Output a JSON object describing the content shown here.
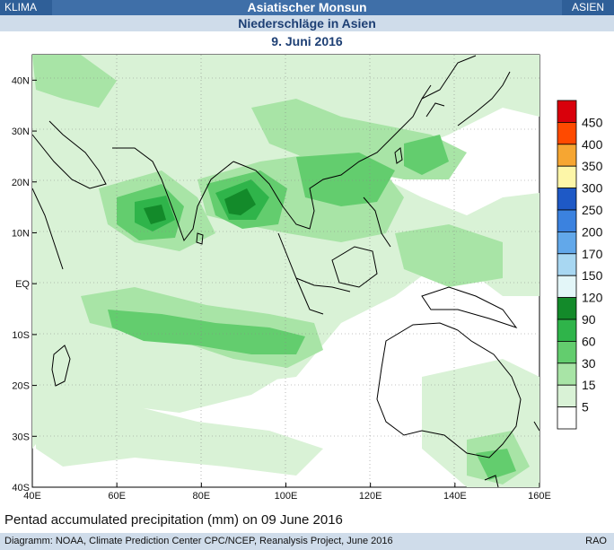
{
  "header": {
    "left_tag": "KLIMA",
    "title": "Asiatischer Monsun",
    "right_tag": "ASIEN",
    "subtitle": "Niederschläge in Asien",
    "date": "9. Juni 2016"
  },
  "map": {
    "caption": "Pentad accumulated precipitation (mm) on 09 June 2016",
    "x_ticks": [
      "40E",
      "60E",
      "80E",
      "100E",
      "120E",
      "140E",
      "160E"
    ],
    "y_ticks": [
      "40N",
      "30N",
      "20N",
      "10N",
      "EQ",
      "10S",
      "20S",
      "30S",
      "40S"
    ],
    "x_range": [
      40,
      160
    ],
    "y_range": [
      -40,
      45
    ],
    "legend": [
      {
        "label": "450",
        "color": "#d9000b"
      },
      {
        "label": "400",
        "color": "#ff4a00"
      },
      {
        "label": "350",
        "color": "#f6a632"
      },
      {
        "label": "300",
        "color": "#fdf6a8"
      },
      {
        "label": "250",
        "color": "#1e59c6"
      },
      {
        "label": "200",
        "color": "#3b82df"
      },
      {
        "label": "170",
        "color": "#62a8ea"
      },
      {
        "label": "150",
        "color": "#a8d7f2"
      },
      {
        "label": "120",
        "color": "#e3f6f8"
      },
      {
        "label": "90",
        "color": "#138a2a"
      },
      {
        "label": "60",
        "color": "#2fb44a"
      },
      {
        "label": "30",
        "color": "#63cd6e"
      },
      {
        "label": "15",
        "color": "#a8e4a6"
      },
      {
        "label": "5",
        "color": "#d9f2d6"
      },
      {
        "label": "",
        "color": "#ffffff"
      }
    ]
  },
  "footer": {
    "credit": "Diagramm: NOAA, Climate Prediction Center CPC/NCEP, Reanalysis Project, June 2016",
    "code": "RAO"
  }
}
